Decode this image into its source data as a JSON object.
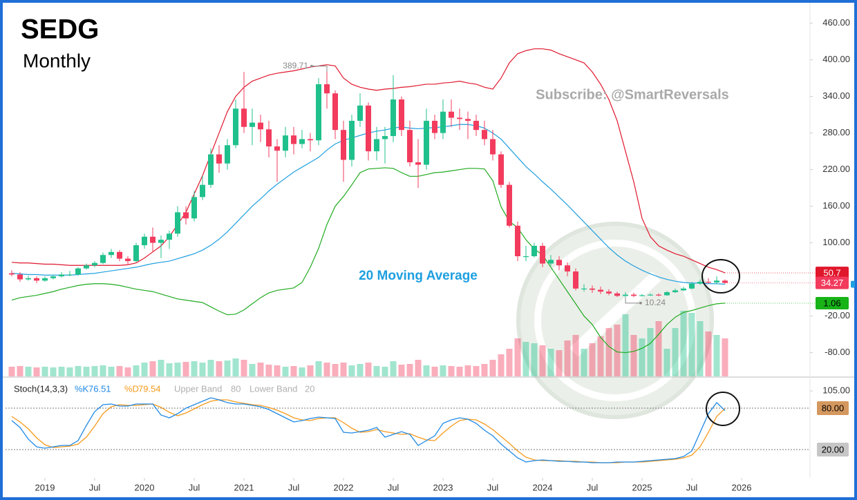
{
  "chart_data": [
    {
      "type": "candlestick",
      "title": "SEDG",
      "subtitle": "Monthly",
      "annotation": "Subscribe: @SmartReversals",
      "x": [
        "2018-09",
        "2018-10",
        "2018-11",
        "2018-12",
        "2019-01",
        "2019-02",
        "2019-03",
        "2019-04",
        "2019-05",
        "2019-06",
        "2019-07",
        "2019-08",
        "2019-09",
        "2019-10",
        "2019-11",
        "2019-12",
        "2020-01",
        "2020-02",
        "2020-03",
        "2020-04",
        "2020-05",
        "2020-06",
        "2020-07",
        "2020-08",
        "2020-09",
        "2020-10",
        "2020-11",
        "2020-12",
        "2021-01",
        "2021-02",
        "2021-03",
        "2021-04",
        "2021-05",
        "2021-06",
        "2021-07",
        "2021-08",
        "2021-09",
        "2021-10",
        "2021-11",
        "2021-12",
        "2022-01",
        "2022-02",
        "2022-03",
        "2022-04",
        "2022-05",
        "2022-06",
        "2022-07",
        "2022-08",
        "2022-09",
        "2022-10",
        "2022-11",
        "2022-12",
        "2023-01",
        "2023-02",
        "2023-03",
        "2023-04",
        "2023-05",
        "2023-06",
        "2023-07",
        "2023-08",
        "2023-09",
        "2023-10",
        "2023-11",
        "2023-12",
        "2024-01",
        "2024-02",
        "2024-03",
        "2024-04",
        "2024-05",
        "2024-06",
        "2024-07",
        "2024-08",
        "2024-09",
        "2024-10",
        "2024-11",
        "2024-12",
        "2025-01",
        "2025-02",
        "2025-03",
        "2025-04",
        "2025-05",
        "2025-06",
        "2025-07",
        "2025-08",
        "2025-09",
        "2025-10",
        "2025-11"
      ],
      "open": [
        50,
        48,
        40,
        42,
        38,
        42,
        45,
        48,
        48,
        58,
        63,
        67,
        80,
        85,
        74,
        70,
        96,
        110,
        100,
        105,
        115,
        150,
        140,
        175,
        195,
        245,
        230,
        260,
        320,
        290,
        297,
        286,
        258,
        251,
        276,
        262,
        270,
        268,
        360,
        345,
        285,
        236,
        300,
        325,
        250,
        270,
        275,
        335,
        285,
        232,
        228,
        300,
        280,
        315,
        305,
        303,
        300,
        285,
        270,
        245,
        195,
        128,
        78,
        78,
        95,
        66,
        72,
        63,
        53,
        25,
        25,
        23,
        20,
        17,
        13,
        15,
        13,
        14,
        15,
        14,
        19,
        22,
        25,
        33,
        36,
        35,
        38
      ],
      "high": [
        55,
        52,
        46,
        45,
        45,
        48,
        52,
        54,
        60,
        66,
        70,
        84,
        90,
        88,
        78,
        100,
        115,
        125,
        112,
        120,
        160,
        160,
        185,
        210,
        255,
        260,
        270,
        335,
        380,
        320,
        310,
        300,
        270,
        290,
        290,
        285,
        280,
        370,
        389.71,
        350,
        300,
        310,
        345,
        330,
        290,
        290,
        375,
        340,
        300,
        270,
        320,
        310,
        335,
        335,
        320,
        315,
        310,
        300,
        285,
        250,
        200,
        135,
        95,
        100,
        100,
        80,
        78,
        68,
        58,
        32,
        30,
        28,
        24,
        20,
        19,
        18,
        16,
        17,
        17,
        21,
        25,
        28,
        36,
        40,
        42,
        45,
        40
      ],
      "low": [
        45,
        36,
        38,
        34,
        36,
        40,
        43,
        45,
        46,
        56,
        60,
        65,
        75,
        70,
        65,
        68,
        90,
        85,
        75,
        90,
        110,
        130,
        135,
        170,
        190,
        215,
        220,
        255,
        280,
        260,
        265,
        240,
        200,
        240,
        245,
        255,
        250,
        260,
        320,
        270,
        200,
        225,
        290,
        235,
        235,
        230,
        265,
        275,
        225,
        190,
        220,
        270,
        270,
        290,
        285,
        270,
        275,
        260,
        235,
        190,
        125,
        70,
        70,
        76,
        60,
        62,
        55,
        45,
        22,
        20,
        18,
        16,
        14,
        11,
        10.24,
        11,
        12,
        13,
        12,
        13,
        18,
        21,
        24,
        31,
        33,
        32,
        33
      ],
      "close": [
        48,
        40,
        42,
        38,
        42,
        45,
        48,
        48,
        58,
        63,
        67,
        80,
        85,
        74,
        70,
        96,
        110,
        100,
        105,
        115,
        150,
        140,
        175,
        195,
        245,
        230,
        260,
        320,
        290,
        297,
        286,
        258,
        251,
        276,
        262,
        270,
        268,
        360,
        345,
        285,
        236,
        300,
        325,
        250,
        270,
        275,
        335,
        285,
        232,
        228,
        300,
        280,
        315,
        305,
        303,
        300,
        285,
        270,
        245,
        195,
        128,
        78,
        78,
        95,
        66,
        72,
        63,
        53,
        25,
        25,
        23,
        20,
        17,
        13,
        15,
        13,
        14,
        15,
        14,
        19,
        22,
        25,
        33,
        36,
        35,
        38,
        34.27
      ],
      "volume": [
        14,
        15,
        14,
        13,
        14,
        13,
        14,
        13,
        15,
        14,
        15,
        16,
        14,
        15,
        13,
        16,
        20,
        22,
        24,
        19,
        20,
        21,
        22,
        20,
        24,
        22,
        23,
        26,
        24,
        18,
        20,
        17,
        16,
        14,
        15,
        13,
        16,
        22,
        20,
        18,
        20,
        16,
        18,
        20,
        15,
        14,
        22,
        17,
        18,
        24,
        16,
        14,
        16,
        15,
        14,
        16,
        15,
        18,
        24,
        32,
        40,
        55,
        50,
        48,
        45,
        40,
        38,
        52,
        60,
        40,
        48,
        58,
        70,
        75,
        90,
        60,
        55,
        70,
        80,
        40,
        70,
        95,
        92,
        80,
        65,
        60,
        55
      ],
      "up_color": "#20c08c",
      "down_color": "#f23b5d",
      "series": [
        {
          "color": "#e0162b",
          "values": [
            68,
            67,
            67,
            66,
            65,
            65,
            64,
            63,
            63,
            63,
            63,
            63,
            63,
            63,
            64,
            67,
            75,
            85,
            95,
            110,
            130,
            150,
            180,
            210,
            245,
            280,
            315,
            340,
            355,
            365,
            370,
            375,
            378,
            380,
            382,
            385,
            388,
            390,
            392,
            390,
            370,
            360,
            355,
            352,
            350,
            352,
            353,
            355,
            356,
            358,
            360,
            360,
            362,
            363,
            365,
            362,
            360,
            355,
            352,
            370,
            395,
            410,
            415,
            418,
            418,
            416,
            410,
            405,
            400,
            395,
            380,
            360,
            335,
            300,
            250,
            200,
            140,
            110,
            95,
            88,
            82,
            78,
            72,
            66,
            60,
            56,
            50.7
          ]
        },
        {
          "name": "20 Moving Average",
          "color": "#1e9fe0",
          "values": [
            50,
            49,
            48,
            48,
            47,
            47,
            47,
            47,
            48,
            49,
            50,
            52,
            54,
            56,
            58,
            60,
            63,
            66,
            68,
            70,
            74,
            78,
            82,
            88,
            96,
            106,
            118,
            132,
            146,
            160,
            172,
            185,
            196,
            206,
            216,
            224,
            232,
            240,
            252,
            262,
            268,
            272,
            276,
            280,
            283,
            285,
            288,
            290,
            288,
            287,
            288,
            289,
            290,
            292,
            294,
            294,
            292,
            288,
            280,
            270,
            255,
            240,
            225,
            213,
            200,
            188,
            175,
            162,
            148,
            134,
            120,
            106,
            92,
            80,
            70,
            62,
            55,
            49,
            44,
            40,
            37,
            35,
            34,
            34,
            33,
            33,
            32
          ]
        },
        {
          "color": "#1faa1f",
          "values": [
            6,
            10,
            12,
            14,
            17,
            20,
            24,
            27,
            30,
            32,
            33,
            33,
            32,
            30,
            27,
            24,
            22,
            20,
            16,
            12,
            8,
            6,
            4,
            2,
            -5,
            -12,
            -18,
            -17,
            -10,
            0,
            10,
            18,
            22,
            24,
            26,
            35,
            60,
            91,
            130,
            160,
            176,
            195,
            215,
            221,
            222,
            223,
            222,
            215,
            209,
            209,
            212,
            215,
            216,
            218,
            220,
            222,
            222,
            221,
            202,
            159,
            135,
            125,
            105,
            90,
            80,
            60,
            40,
            20,
            0,
            -20,
            -34,
            -55,
            -70,
            -79,
            -80,
            -78,
            -73,
            -65,
            -50,
            -34,
            -22,
            -14,
            -11,
            -7,
            -3,
            0,
            1.06
          ]
        }
      ],
      "ylim": [
        -119,
        489
      ],
      "yticks": [
        {
          "value": 460,
          "label": "460.00"
        },
        {
          "value": 400,
          "label": "400.00"
        },
        {
          "value": 340,
          "label": "340.00"
        },
        {
          "value": 280,
          "label": "280.00"
        },
        {
          "value": 220,
          "label": "220.00"
        },
        {
          "value": 160,
          "label": "160.00"
        },
        {
          "value": 100,
          "label": "100.00"
        },
        {
          "value": -20,
          "label": "-20.00"
        },
        {
          "value": -80,
          "label": "-80.00"
        }
      ],
      "xticks": [
        {
          "value": "2019-01",
          "label": "2019"
        },
        {
          "value": "2019-07",
          "label": "Jul"
        },
        {
          "value": "2020-01",
          "label": "2020"
        },
        {
          "value": "2020-07",
          "label": "Jul"
        },
        {
          "value": "2021-01",
          "label": "2021"
        },
        {
          "value": "2021-07",
          "label": "Jul"
        },
        {
          "value": "2022-01",
          "label": "2022"
        },
        {
          "value": "2022-07",
          "label": "Jul"
        },
        {
          "value": "2023-01",
          "label": "2023"
        },
        {
          "value": "2023-07",
          "label": "Jul"
        },
        {
          "value": "2024-01",
          "label": "2024"
        },
        {
          "value": "2024-07",
          "label": "Jul"
        },
        {
          "value": "2025-01",
          "label": "2025"
        },
        {
          "value": "2025-07",
          "label": "Jul"
        },
        {
          "value": "2026-01",
          "label": "2026"
        }
      ]
    },
    {
      "type": "line",
      "title": "Stoch(14,3,3)",
      "series": [
        {
          "name": "%K",
          "color": "#1e88e5",
          "values": [
            62,
            52,
            35,
            24,
            22,
            24,
            26,
            26,
            33,
            55,
            75,
            85,
            86,
            83,
            83,
            86,
            86,
            86,
            70,
            66,
            72,
            80,
            85,
            90,
            95,
            92,
            88,
            86,
            86,
            84,
            82,
            78,
            72,
            66,
            60,
            62,
            65,
            67,
            66,
            65,
            45,
            44,
            46,
            48,
            52,
            38,
            42,
            46,
            42,
            26,
            33,
            40,
            58,
            63,
            66,
            64,
            58,
            48,
            40,
            28,
            18,
            8,
            2,
            4,
            5,
            4,
            3,
            3,
            2,
            2,
            1,
            1,
            1,
            2,
            2,
            2,
            3,
            4,
            5,
            6,
            7,
            10,
            18,
            45,
            72,
            88,
            76.51
          ]
        },
        {
          "name": "%D",
          "color": "#f59a1c",
          "values": [
            68,
            60,
            50,
            37,
            27,
            23,
            24,
            25,
            28,
            38,
            54,
            72,
            82,
            85,
            84,
            84,
            85,
            86,
            81,
            74,
            69,
            73,
            79,
            85,
            90,
            92,
            92,
            89,
            87,
            85,
            84,
            81,
            77,
            72,
            66,
            63,
            62,
            65,
            66,
            66,
            59,
            51,
            45,
            46,
            49,
            46,
            44,
            42,
            43,
            38,
            34,
            33,
            44,
            54,
            62,
            64,
            63,
            57,
            49,
            39,
            29,
            18,
            9,
            5,
            4,
            4,
            4,
            3,
            3,
            2,
            2,
            1,
            1,
            1,
            2,
            2,
            2,
            3,
            4,
            5,
            6,
            8,
            12,
            24,
            45,
            68,
            79.54
          ]
        }
      ],
      "bands": [
        {
          "name": "Upper Band",
          "value": 80,
          "label": "80.00",
          "color": "#d4985f"
        },
        {
          "name": "Lower Band",
          "value": 20,
          "label": "20.00",
          "color": "#c6c6c6"
        }
      ],
      "ylim": [
        -21,
        123
      ],
      "yticks": [
        {
          "value": 105,
          "label": "105.00"
        }
      ]
    }
  ]
}
